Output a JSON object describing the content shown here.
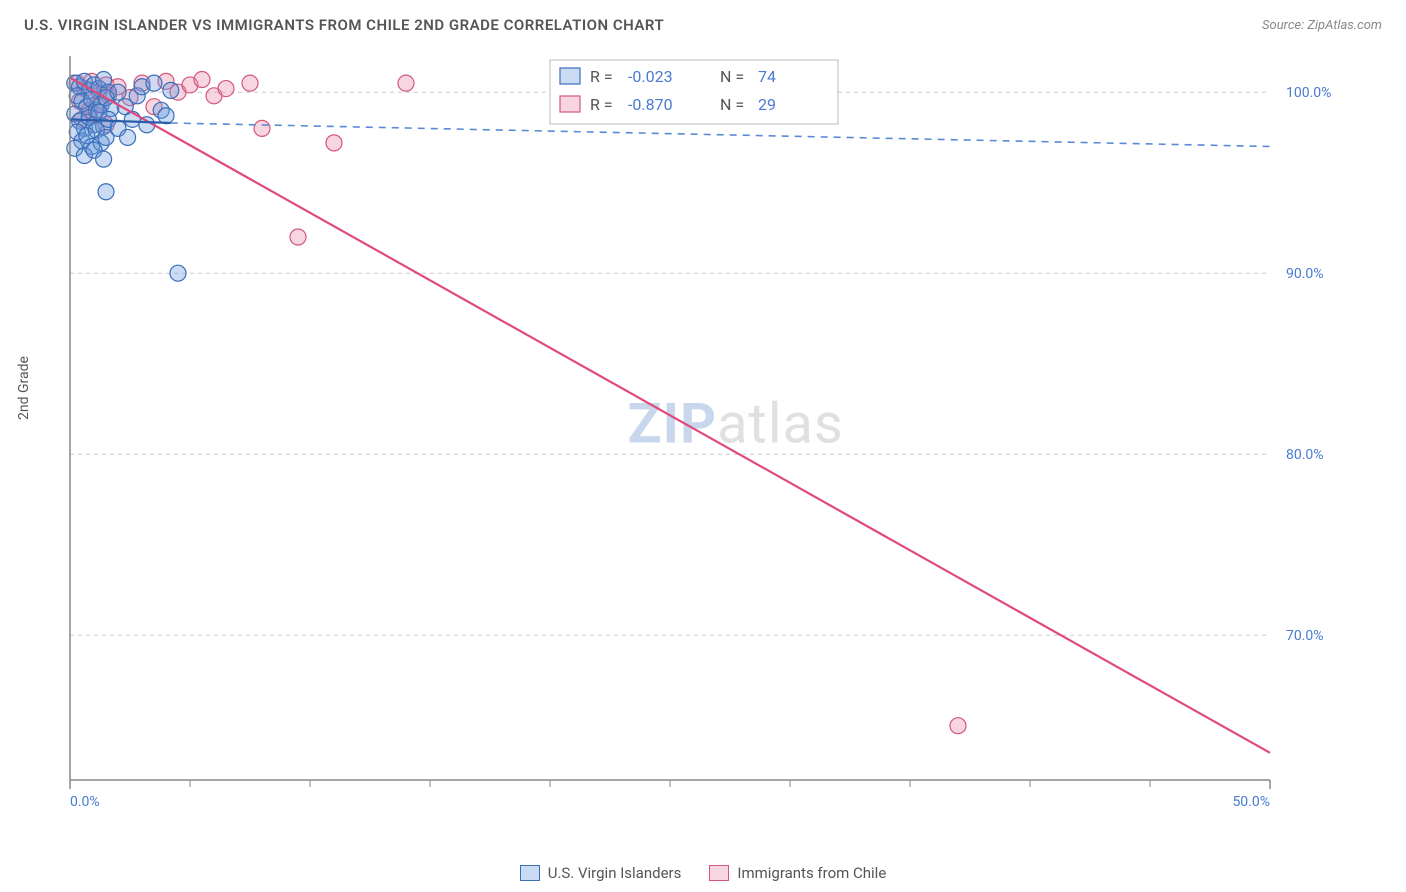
{
  "header": {
    "title": "U.S. VIRGIN ISLANDER VS IMMIGRANTS FROM CHILE 2ND GRADE CORRELATION CHART",
    "source": "Source: ZipAtlas.com"
  },
  "ylabel": "2nd Grade",
  "watermark": {
    "part1": "ZIP",
    "part2": "atlas"
  },
  "chart": {
    "type": "scatter",
    "xlim": [
      0,
      50
    ],
    "ylim": [
      62,
      102
    ],
    "xtick_positions": [
      0,
      50
    ],
    "xtick_labels": [
      "0.0%",
      "50.0%"
    ],
    "xtick_minor": [
      5,
      10,
      15,
      20,
      25,
      30,
      35,
      40,
      45
    ],
    "ytick_positions": [
      70,
      80,
      90,
      100
    ],
    "ytick_labels": [
      "70.0%",
      "80.0%",
      "90.0%",
      "100.0%"
    ],
    "grid_color": "#cccccc",
    "axis_color": "#888888",
    "background_color": "#ffffff",
    "marker_radius": 8,
    "series": [
      {
        "name": "U.S. Virgin Islanders",
        "color_fill": "#6699dd",
        "color_stroke": "#3b6fb8",
        "R": "-0.023",
        "N": "74",
        "trend": {
          "solid_from": [
            0,
            98.5
          ],
          "solid_to": [
            4.2,
            98.3
          ],
          "dash_to": [
            50,
            97.0
          ]
        },
        "points": [
          [
            0.2,
            100.5
          ],
          [
            0.4,
            100.3
          ],
          [
            0.6,
            100.6
          ],
          [
            0.8,
            100.1
          ],
          [
            1.0,
            100.4
          ],
          [
            1.2,
            100.2
          ],
          [
            1.4,
            100.7
          ],
          [
            1.6,
            100.0
          ],
          [
            0.3,
            99.8
          ],
          [
            0.5,
            99.5
          ],
          [
            0.7,
            99.2
          ],
          [
            0.9,
            99.6
          ],
          [
            1.1,
            99.0
          ],
          [
            1.3,
            99.3
          ],
          [
            1.5,
            99.7
          ],
          [
            1.7,
            99.1
          ],
          [
            0.2,
            98.8
          ],
          [
            0.4,
            98.4
          ],
          [
            0.6,
            98.0
          ],
          [
            0.8,
            98.6
          ],
          [
            1.0,
            98.2
          ],
          [
            1.2,
            98.9
          ],
          [
            1.4,
            98.1
          ],
          [
            1.6,
            98.5
          ],
          [
            0.3,
            97.8
          ],
          [
            0.5,
            97.3
          ],
          [
            0.7,
            97.6
          ],
          [
            0.9,
            97.0
          ],
          [
            1.1,
            97.9
          ],
          [
            1.3,
            97.2
          ],
          [
            1.5,
            97.5
          ],
          [
            0.2,
            96.9
          ],
          [
            0.6,
            96.5
          ],
          [
            1.0,
            96.8
          ],
          [
            1.4,
            96.3
          ],
          [
            2.0,
            100.0
          ],
          [
            2.3,
            99.2
          ],
          [
            2.6,
            98.5
          ],
          [
            2.0,
            98.0
          ],
          [
            2.4,
            97.5
          ],
          [
            2.8,
            99.8
          ],
          [
            3.0,
            100.3
          ],
          [
            3.2,
            98.2
          ],
          [
            3.5,
            100.5
          ],
          [
            3.8,
            99.0
          ],
          [
            4.0,
            98.7
          ],
          [
            4.2,
            100.1
          ],
          [
            1.5,
            94.5
          ],
          [
            4.5,
            90.0
          ]
        ]
      },
      {
        "name": "Immigrants from Chile",
        "color_fill": "#e88aa8",
        "color_stroke": "#d4567e",
        "R": "-0.870",
        "N": "29",
        "trend": {
          "from": [
            0,
            100.8
          ],
          "to": [
            50,
            63.5
          ]
        },
        "points": [
          [
            0.3,
            100.5
          ],
          [
            0.6,
            100.2
          ],
          [
            0.9,
            100.6
          ],
          [
            1.2,
            100.0
          ],
          [
            1.5,
            100.4
          ],
          [
            0.4,
            99.5
          ],
          [
            0.8,
            99.0
          ],
          [
            1.2,
            99.3
          ],
          [
            1.6,
            99.8
          ],
          [
            0.5,
            98.5
          ],
          [
            1.0,
            98.8
          ],
          [
            1.5,
            98.2
          ],
          [
            2.0,
            100.3
          ],
          [
            2.5,
            99.7
          ],
          [
            3.0,
            100.5
          ],
          [
            3.5,
            99.2
          ],
          [
            4.0,
            100.6
          ],
          [
            4.5,
            100.0
          ],
          [
            5.0,
            100.4
          ],
          [
            5.5,
            100.7
          ],
          [
            6.0,
            99.8
          ],
          [
            7.5,
            100.5
          ],
          [
            8.0,
            98.0
          ],
          [
            6.5,
            100.2
          ],
          [
            11.0,
            97.2
          ],
          [
            14.0,
            100.5
          ],
          [
            9.5,
            92.0
          ],
          [
            37.0,
            65.0
          ]
        ]
      }
    ]
  },
  "stats_legend": {
    "rows": [
      {
        "swatch": "blue",
        "r_label": "R =",
        "r_val": "-0.023",
        "n_label": "N =",
        "n_val": "74"
      },
      {
        "swatch": "pink",
        "r_label": "R =",
        "r_val": "-0.870",
        "n_label": "N =",
        "n_val": "29"
      }
    ]
  },
  "bottom_legend": {
    "items": [
      {
        "swatch": "blue",
        "label": "U.S. Virgin Islanders"
      },
      {
        "swatch": "pink",
        "label": "Immigrants from Chile"
      }
    ]
  }
}
